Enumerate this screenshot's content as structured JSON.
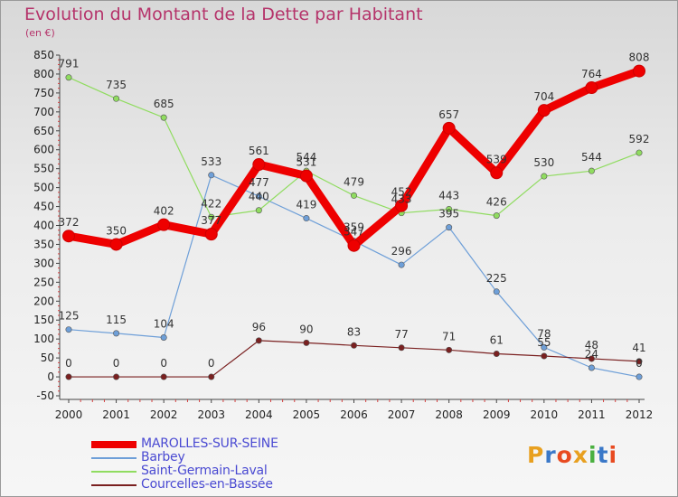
{
  "header": {
    "title": "Evolution du Montant de la Dette par Habitant",
    "unit": "(en €)"
  },
  "brand": {
    "text": "Proxiti",
    "letters": [
      "P",
      "r",
      "o",
      "x",
      "i",
      "t",
      "i"
    ],
    "colors": [
      "#e8a020",
      "#3a78c8",
      "#e84a20",
      "#e8a020",
      "#4ab040",
      "#3a78c8",
      "#e84a20"
    ]
  },
  "chart_data": {
    "type": "line",
    "x": [
      "2000",
      "2001",
      "2002",
      "2003",
      "2004",
      "2005",
      "2006",
      "2007",
      "2008",
      "2009",
      "2010",
      "2011",
      "2012"
    ],
    "ylim": [
      -50,
      850
    ],
    "yticks": [
      -50,
      0,
      50,
      100,
      150,
      200,
      250,
      300,
      350,
      400,
      450,
      500,
      550,
      600,
      650,
      700,
      750,
      800,
      850
    ],
    "grid": false,
    "legend": "bottom-left",
    "series": [
      {
        "name": "MAROLLES-SUR-SEINE",
        "color": "#ee0000",
        "width": 9,
        "values": [
          372,
          350,
          402,
          377,
          561,
          531,
          347,
          452,
          657,
          539,
          704,
          764,
          808
        ]
      },
      {
        "name": "Barbey",
        "color": "#6e9fd8",
        "width": 1.2,
        "values": [
          125,
          115,
          104,
          533,
          477,
          419,
          359,
          296,
          395,
          225,
          78,
          24,
          0
        ]
      },
      {
        "name": "Saint-Germain-Laval",
        "color": "#90dc60",
        "width": 1.2,
        "values": [
          791,
          735,
          685,
          422,
          440,
          544,
          479,
          433,
          443,
          426,
          530,
          544,
          592
        ]
      },
      {
        "name": "Courcelles-en-Bassée",
        "color": "#7a2020",
        "width": 1.2,
        "values": [
          0,
          0,
          0,
          0,
          96,
          90,
          83,
          77,
          71,
          61,
          55,
          48,
          41
        ]
      }
    ],
    "data_labels": [
      {
        "series": "MAROLLES-SUR-SEINE",
        "labels": [
          "372",
          "350",
          "402",
          "377",
          "561",
          "531",
          "347",
          "452",
          "657",
          "539",
          "704",
          "764",
          "808"
        ]
      },
      {
        "series": "Barbey",
        "labels": [
          "125",
          "115",
          "104",
          "533",
          "477",
          "419",
          "359",
          "296",
          "395",
          "225",
          "78",
          "24",
          "0"
        ]
      },
      {
        "series": "Saint-Germain-Laval",
        "labels": [
          "791",
          "735",
          "685",
          "422",
          "440",
          "544",
          "479",
          "433",
          "443",
          "426",
          "530",
          "544",
          "592"
        ]
      },
      {
        "series": "Courcelles-en-Bassée",
        "labels": [
          "0",
          "0",
          "0",
          "0",
          "96",
          "90",
          "83",
          "77",
          "71",
          "61",
          "55",
          "48",
          "41"
        ]
      }
    ]
  }
}
